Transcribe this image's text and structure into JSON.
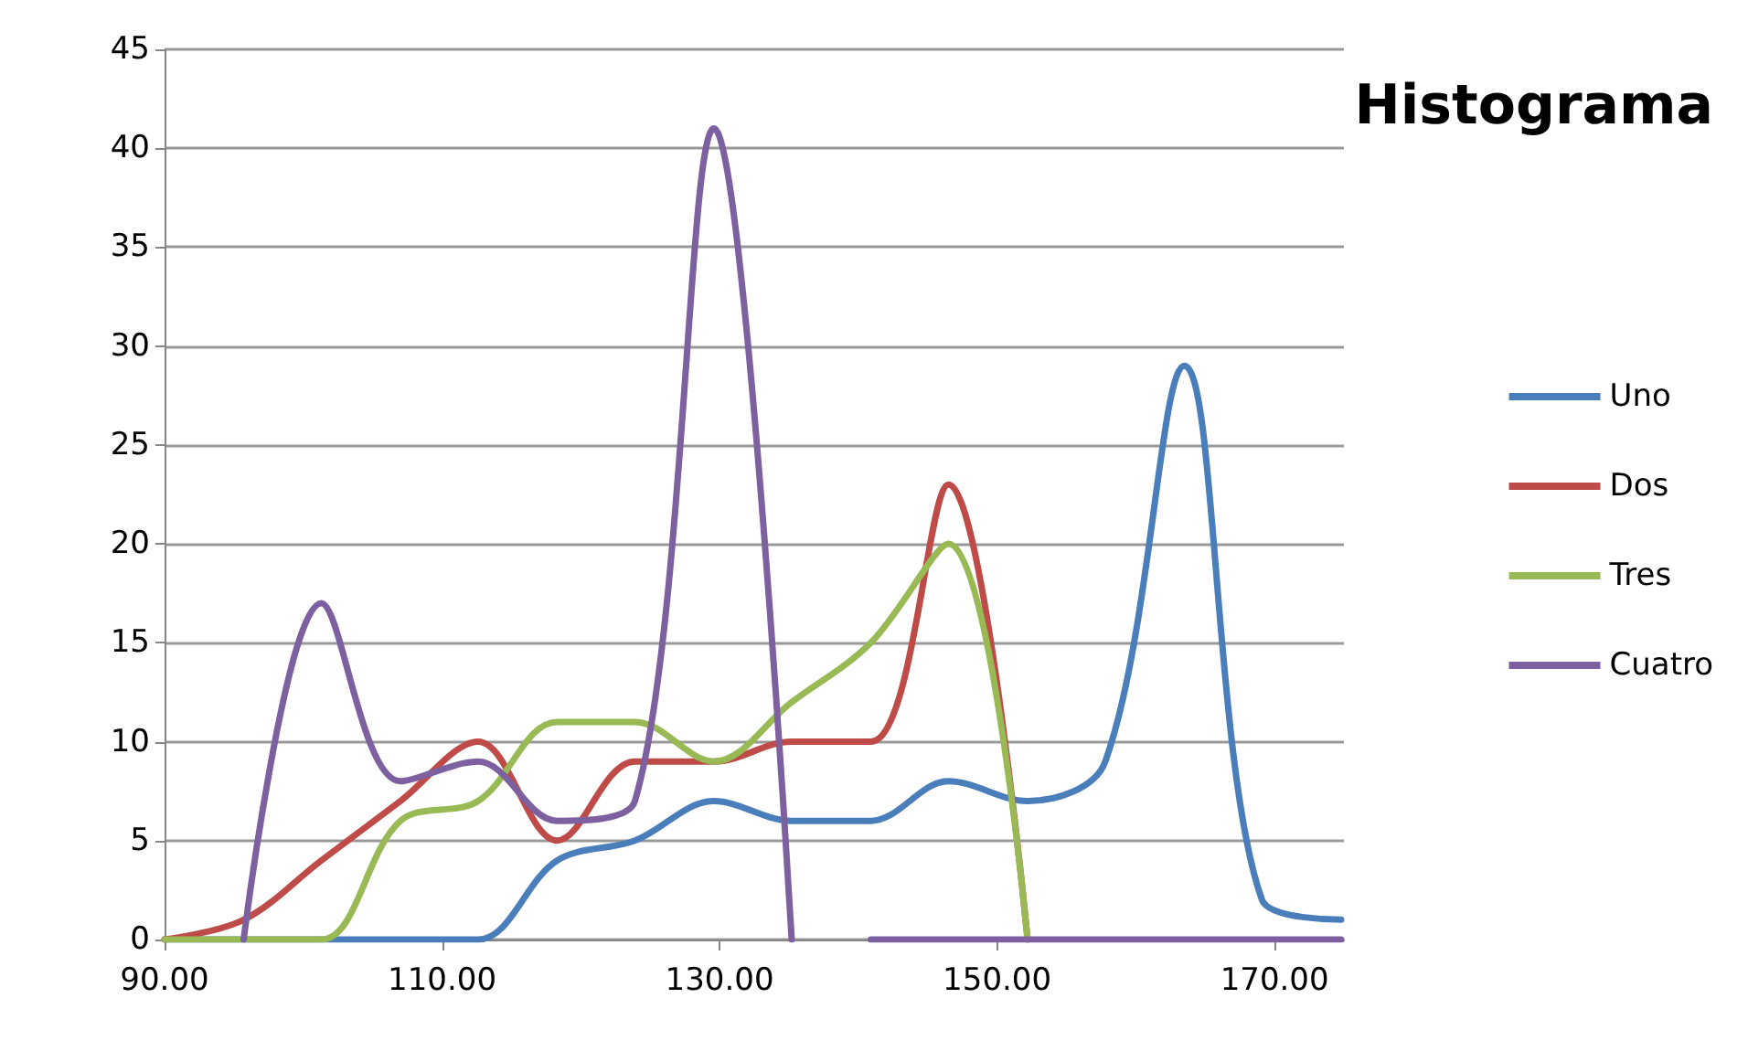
{
  "chart_data": {
    "type": "line",
    "title": "Histograma",
    "x": [
      90,
      95.7,
      101.3,
      107,
      112.6,
      118.3,
      123.9,
      129.6,
      135.2,
      140.9,
      146.5,
      152.2,
      157.8,
      163.5,
      169.1,
      174.8
    ],
    "series": [
      {
        "name": "Uno",
        "color": "#4a7ebb",
        "values": [
          0,
          0,
          0,
          0,
          0,
          4,
          5,
          7,
          6,
          6,
          8,
          7,
          9,
          29,
          2,
          1
        ]
      },
      {
        "name": "Dos",
        "color": "#be4b48",
        "values": [
          0,
          1,
          4,
          7,
          10,
          5,
          9,
          9,
          10,
          10,
          23,
          0,
          null,
          null,
          null,
          null
        ]
      },
      {
        "name": "Tres",
        "color": "#98b954",
        "values": [
          0,
          0,
          0,
          6,
          7,
          11,
          11,
          9,
          12,
          15,
          20,
          0,
          null,
          null,
          null,
          null
        ]
      },
      {
        "name": "Cuatro",
        "color": "#7d60a0",
        "x": [
          95.7,
          101.3,
          107,
          112.6,
          118.3,
          123.9,
          129.6,
          135.2,
          138,
          140.9,
          146.5,
          152.2,
          157.8,
          163.5,
          169.1,
          174.8
        ],
        "values": [
          0,
          17,
          8,
          9,
          6,
          7,
          41,
          0,
          null,
          0,
          0,
          0,
          0,
          0,
          0,
          0
        ]
      }
    ],
    "xlim": [
      90,
      175
    ],
    "xticks": [
      {
        "value": 90,
        "label": "90.00"
      },
      {
        "value": 110,
        "label": "110.00"
      },
      {
        "value": 130,
        "label": "130.00"
      },
      {
        "value": 150,
        "label": "150.00"
      },
      {
        "value": 170,
        "label": "170.00"
      }
    ],
    "ylim": [
      0,
      45
    ],
    "yticks": [
      0,
      5,
      10,
      15,
      20,
      25,
      30,
      35,
      40,
      45
    ],
    "grid": "y",
    "legend": "right",
    "marker": "none",
    "line_style": "solid"
  }
}
